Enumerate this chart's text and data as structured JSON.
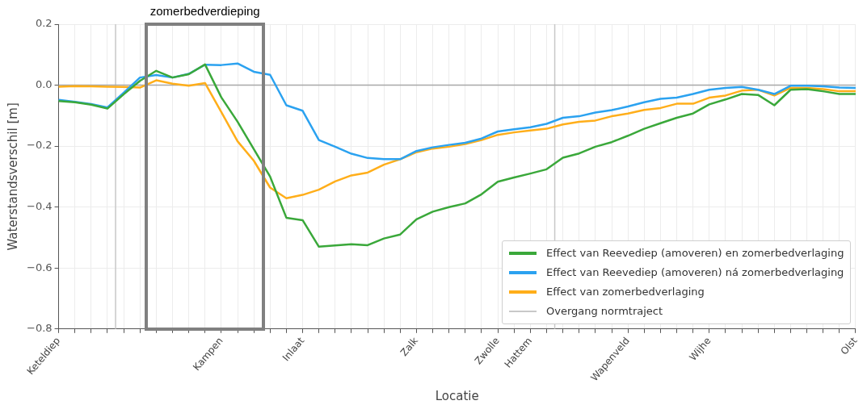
{
  "chart_data": {
    "type": "line",
    "xlabel": "Locatie",
    "ylabel": "Waterstandsverschil [m]",
    "categories": [
      "Keteldiep",
      null,
      null,
      null,
      null,
      null,
      null,
      null,
      null,
      null,
      "Kampen",
      null,
      null,
      null,
      null,
      "Inlaat",
      null,
      null,
      null,
      null,
      null,
      null,
      "Zalk",
      null,
      null,
      null,
      null,
      "Zwolle",
      null,
      "Hattem",
      null,
      null,
      null,
      null,
      null,
      "Wapenveld",
      null,
      null,
      null,
      null,
      "Wijhe",
      null,
      null,
      null,
      null,
      null,
      null,
      null,
      null,
      "Olst"
    ],
    "series": [
      {
        "name": "Effect van Reevediep (amoveren) en zomerbedverlaging",
        "color": "#3aa83a",
        "values": [
          -0.052,
          -0.056,
          -0.064,
          -0.077,
          -0.03,
          0.014,
          0.047,
          0.025,
          0.036,
          0.068,
          -0.04,
          -0.12,
          -0.21,
          -0.3,
          -0.435,
          -0.443,
          -0.53,
          -0.526,
          -0.522,
          -0.525,
          -0.503,
          -0.49,
          -0.44,
          -0.415,
          -0.4,
          -0.388,
          -0.358,
          -0.317,
          -0.303,
          -0.29,
          -0.276,
          -0.238,
          -0.224,
          -0.202,
          -0.187,
          -0.166,
          -0.143,
          -0.125,
          -0.107,
          -0.093,
          -0.063,
          -0.047,
          -0.029,
          -0.032,
          -0.066,
          -0.015,
          -0.013,
          -0.02,
          -0.029,
          -0.029
        ]
      },
      {
        "name": "Effect van Reevediep (amoveren) ná zomerbedverlaging",
        "color": "#2ba2f0",
        "values": [
          -0.048,
          -0.055,
          -0.062,
          -0.073,
          -0.025,
          0.025,
          0.033,
          0.025,
          0.037,
          0.067,
          0.066,
          0.071,
          0.044,
          0.034,
          -0.066,
          -0.084,
          -0.18,
          -0.202,
          -0.225,
          -0.239,
          -0.243,
          -0.243,
          -0.216,
          -0.204,
          -0.196,
          -0.189,
          -0.175,
          -0.152,
          -0.145,
          -0.138,
          -0.127,
          -0.107,
          -0.102,
          -0.09,
          -0.082,
          -0.07,
          -0.056,
          -0.045,
          -0.041,
          -0.029,
          -0.015,
          -0.009,
          -0.006,
          -0.015,
          -0.029,
          -0.002,
          -0.002,
          -0.004,
          -0.008,
          -0.009
        ]
      },
      {
        "name": "Effect van zomerbedverlaging",
        "color": "#ffae1a",
        "values": [
          -0.005,
          -0.003,
          -0.004,
          -0.005,
          -0.006,
          -0.008,
          0.016,
          0.005,
          -0.002,
          0.007,
          -0.088,
          -0.184,
          -0.248,
          -0.336,
          -0.371,
          -0.36,
          -0.343,
          -0.316,
          -0.296,
          -0.287,
          -0.261,
          -0.243,
          -0.22,
          -0.208,
          -0.202,
          -0.193,
          -0.18,
          -0.163,
          -0.155,
          -0.149,
          -0.143,
          -0.129,
          -0.12,
          -0.116,
          -0.102,
          -0.093,
          -0.081,
          -0.075,
          -0.061,
          -0.061,
          -0.041,
          -0.034,
          -0.018,
          -0.015,
          -0.034,
          -0.009,
          -0.009,
          -0.013,
          -0.02,
          -0.02
        ]
      }
    ],
    "ylim": [
      -0.8,
      0.2
    ],
    "yticks": [
      {
        "value": -0.8,
        "label": "−0.8"
      },
      {
        "value": -0.6,
        "label": "−0.6"
      },
      {
        "value": -0.4,
        "label": "−0.4"
      },
      {
        "value": -0.2,
        "label": "−0.2"
      },
      {
        "value": 0,
        "label": "0.0"
      },
      {
        "value": 0.2,
        "label": "0.2"
      }
    ],
    "ref_lines": [
      {
        "axis": "y",
        "value": 0,
        "color": "#a8a8a8"
      }
    ],
    "annotations": [
      "zomerbedverdieping",
      "Overgang normtraject"
    ],
    "grid": true,
    "legend": "bottom right"
  }
}
